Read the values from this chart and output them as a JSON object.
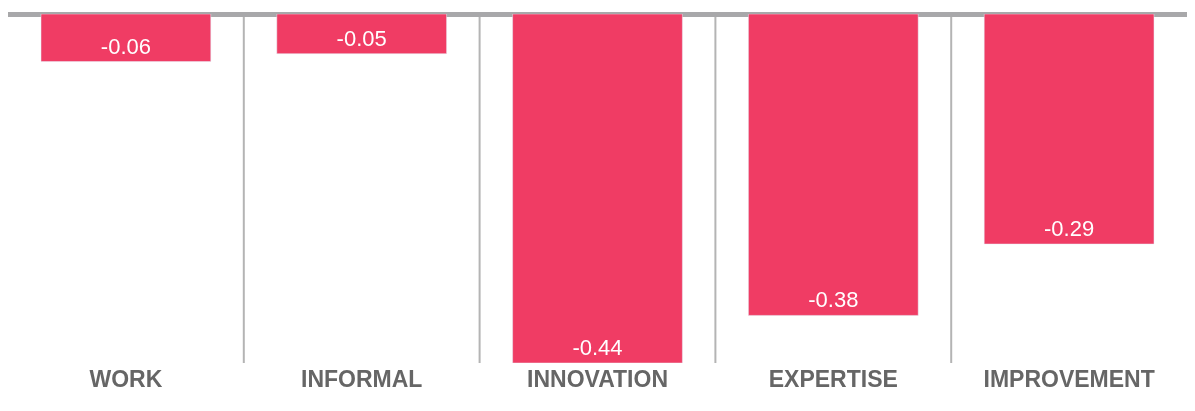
{
  "chart_data": {
    "type": "bar",
    "categories": [
      "WORK",
      "INFORMAL",
      "INNOVATION",
      "EXPERTISE",
      "IMPROVEMENT"
    ],
    "values": [
      -0.06,
      -0.05,
      -0.44,
      -0.38,
      -0.29
    ],
    "color": "#f03c64",
    "data_labels": true,
    "grid": "x",
    "legend": false
  }
}
